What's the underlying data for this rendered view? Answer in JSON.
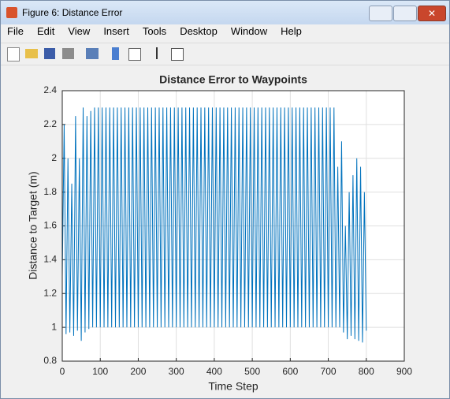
{
  "window": {
    "title": "Figure 6: Distance Error",
    "menu": [
      "File",
      "Edit",
      "View",
      "Insert",
      "Tools",
      "Desktop",
      "Window",
      "Help"
    ]
  },
  "chart_data": {
    "type": "line",
    "title": "Distance Error to Waypoints",
    "x_label": "Time Step",
    "y_label": "Distance to Target (m)",
    "color": "#0072bd",
    "grid": true,
    "xlim": [
      0,
      900
    ],
    "xticks": [
      0,
      100,
      200,
      300,
      400,
      500,
      600,
      700,
      800,
      900
    ],
    "ylim": [
      0.8,
      2.4
    ],
    "yticks": [
      0.8,
      1,
      1.2,
      1.4,
      1.6,
      1.8,
      2,
      2.2,
      2.4
    ],
    "x": [
      0,
      5,
      10,
      15,
      20,
      25,
      30,
      35,
      40,
      45,
      50,
      55,
      60,
      65,
      70,
      75,
      80,
      85,
      90,
      95,
      100,
      105,
      110,
      115,
      120,
      125,
      130,
      135,
      140,
      145,
      150,
      155,
      160,
      165,
      170,
      175,
      180,
      185,
      190,
      195,
      200,
      205,
      210,
      215,
      220,
      225,
      230,
      235,
      240,
      245,
      250,
      255,
      260,
      265,
      270,
      275,
      280,
      285,
      290,
      295,
      300,
      305,
      310,
      315,
      320,
      325,
      330,
      335,
      340,
      345,
      350,
      355,
      360,
      365,
      370,
      375,
      380,
      385,
      390,
      395,
      400,
      405,
      410,
      415,
      420,
      425,
      430,
      435,
      440,
      445,
      450,
      455,
      460,
      465,
      470,
      475,
      480,
      485,
      490,
      495,
      500,
      505,
      510,
      515,
      520,
      525,
      530,
      535,
      540,
      545,
      550,
      555,
      560,
      565,
      570,
      575,
      580,
      585,
      590,
      595,
      600,
      605,
      610,
      615,
      620,
      625,
      630,
      635,
      640,
      645,
      650,
      655,
      660,
      665,
      670,
      675,
      680,
      685,
      690,
      695,
      700,
      705,
      710,
      715,
      720,
      725,
      730,
      735,
      740,
      745,
      750,
      755,
      760,
      765,
      770,
      775,
      780,
      785,
      790,
      795,
      800
    ],
    "values": [
      1.3,
      2.2,
      0.96,
      2.0,
      0.97,
      1.85,
      0.95,
      2.25,
      0.98,
      2.0,
      0.92,
      2.3,
      0.97,
      2.25,
      0.99,
      2.28,
      1.0,
      2.3,
      1.0,
      2.3,
      1.0,
      2.3,
      1.0,
      2.3,
      1.0,
      2.3,
      1.0,
      2.3,
      1.0,
      2.3,
      1.0,
      2.3,
      1.0,
      2.3,
      1.0,
      2.3,
      1.0,
      2.3,
      1.0,
      2.3,
      1.0,
      2.3,
      1.0,
      2.3,
      1.0,
      2.3,
      1.0,
      2.3,
      1.0,
      2.3,
      1.0,
      2.3,
      1.0,
      2.3,
      1.0,
      2.3,
      1.0,
      2.3,
      1.0,
      2.3,
      1.0,
      2.3,
      1.0,
      2.3,
      1.0,
      2.3,
      1.0,
      2.3,
      1.0,
      2.3,
      1.0,
      2.3,
      1.0,
      2.3,
      1.0,
      2.3,
      1.0,
      2.3,
      1.0,
      2.3,
      1.0,
      2.3,
      1.0,
      2.3,
      1.0,
      2.3,
      1.0,
      2.3,
      1.0,
      2.3,
      1.0,
      2.3,
      1.0,
      2.3,
      1.0,
      2.3,
      1.0,
      2.3,
      1.0,
      2.3,
      1.0,
      2.3,
      1.0,
      2.3,
      1.0,
      2.3,
      1.0,
      2.3,
      1.0,
      2.3,
      1.0,
      2.3,
      1.0,
      2.3,
      1.0,
      2.3,
      1.0,
      2.3,
      1.0,
      2.3,
      1.0,
      2.3,
      1.0,
      2.3,
      1.0,
      2.3,
      1.0,
      2.3,
      1.0,
      2.3,
      1.0,
      2.3,
      1.0,
      2.3,
      1.0,
      2.3,
      1.0,
      2.3,
      1.0,
      2.3,
      1.0,
      2.3,
      1.0,
      2.3,
      1.0,
      1.95,
      1.0,
      2.1,
      0.97,
      1.6,
      0.93,
      1.8,
      0.95,
      1.9,
      0.93,
      2.0,
      0.92,
      1.95,
      0.91,
      1.8,
      0.98
    ]
  }
}
